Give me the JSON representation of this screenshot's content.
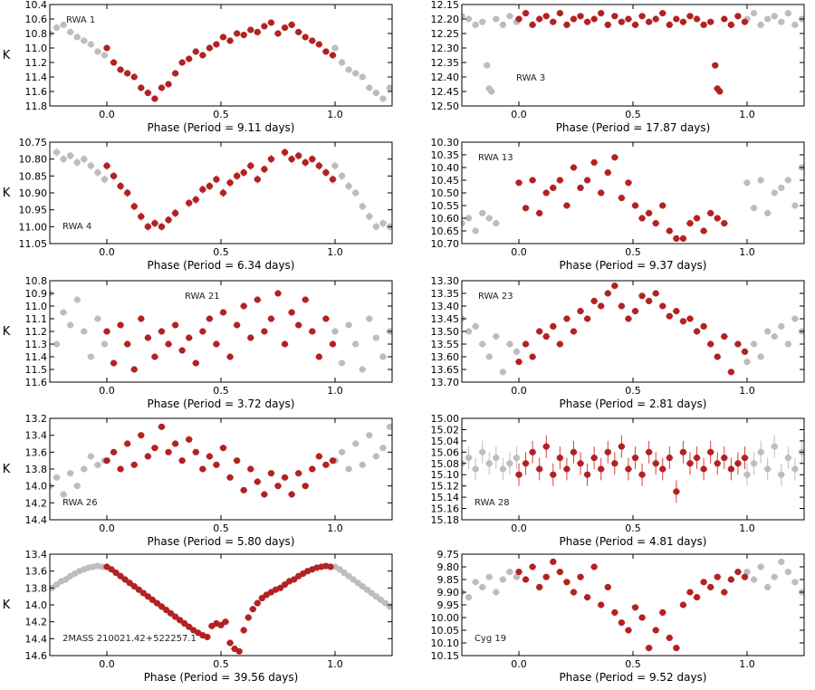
{
  "colors": {
    "main": "#b22222",
    "fold": "#bdbdbd",
    "main_err": "#e03a3a"
  },
  "chart_data": [
    {
      "type": "scatter",
      "name": "RWA 1",
      "period": "9.11",
      "xlabel": "Phase (Period = 9.11 days)",
      "ylabel": "K",
      "xlim": [
        -0.25,
        1.25
      ],
      "xticks": [
        "0.0",
        "0.5",
        "1.0"
      ],
      "ylim": [
        11.8,
        10.4
      ],
      "yticks": [
        "10.4",
        "10.6",
        "10.8",
        "11.0",
        "11.2",
        "11.4",
        "11.6",
        "11.8"
      ],
      "err": 0.02,
      "label_pos": "top-left",
      "y_show_label": true,
      "phase": [
        0.0,
        0.03,
        0.06,
        0.09,
        0.12,
        0.15,
        0.18,
        0.21,
        0.24,
        0.27,
        0.3,
        0.33,
        0.36,
        0.39,
        0.42,
        0.45,
        0.48,
        0.51,
        0.54,
        0.57,
        0.6,
        0.63,
        0.66,
        0.69,
        0.72,
        0.75,
        0.78,
        0.81,
        0.84,
        0.87,
        0.9,
        0.93,
        0.96,
        0.99
      ],
      "mag": [
        11.0,
        11.2,
        11.3,
        11.35,
        11.4,
        11.55,
        11.62,
        11.7,
        11.55,
        11.5,
        11.35,
        11.2,
        11.15,
        11.05,
        11.1,
        11.0,
        10.95,
        10.85,
        10.9,
        10.8,
        10.82,
        10.75,
        10.78,
        10.7,
        10.65,
        10.8,
        10.72,
        10.68,
        10.78,
        10.85,
        10.9,
        10.95,
        11.05,
        11.1
      ]
    },
    {
      "type": "scatter",
      "name": "RWA 3",
      "period": "17.87",
      "xlabel": "Phase (Period = 17.87 days)",
      "ylabel": "",
      "xlim": [
        -0.25,
        1.25
      ],
      "xticks": [
        "0.0",
        "0.5",
        "1.0"
      ],
      "ylim": [
        12.5,
        12.15
      ],
      "yticks": [
        "12.15",
        "12.20",
        "12.25",
        "12.30",
        "12.35",
        "12.40",
        "12.45",
        "12.50"
      ],
      "err": 0.01,
      "label_pos": "center-left",
      "y_show_label": false,
      "phase": [
        0.0,
        0.03,
        0.06,
        0.09,
        0.12,
        0.15,
        0.18,
        0.21,
        0.24,
        0.27,
        0.3,
        0.33,
        0.36,
        0.39,
        0.42,
        0.45,
        0.48,
        0.51,
        0.54,
        0.57,
        0.6,
        0.63,
        0.66,
        0.69,
        0.72,
        0.75,
        0.78,
        0.81,
        0.84,
        0.86,
        0.87,
        0.88,
        0.9,
        0.93,
        0.96,
        0.99
      ],
      "mag": [
        12.2,
        12.18,
        12.22,
        12.2,
        12.19,
        12.21,
        12.18,
        12.22,
        12.2,
        12.19,
        12.21,
        12.2,
        12.18,
        12.22,
        12.19,
        12.21,
        12.2,
        12.22,
        12.19,
        12.21,
        12.2,
        12.18,
        12.22,
        12.2,
        12.21,
        12.19,
        12.2,
        12.22,
        12.21,
        12.36,
        12.44,
        12.45,
        12.2,
        12.22,
        12.19,
        12.21
      ]
    },
    {
      "type": "scatter",
      "name": "RWA 4",
      "period": "6.34",
      "xlabel": "Phase (Period = 6.34 days)",
      "ylabel": "K",
      "xlim": [
        -0.25,
        1.25
      ],
      "xticks": [
        "0.0",
        "0.5",
        "1.0"
      ],
      "ylim": [
        11.05,
        10.75
      ],
      "yticks": [
        "10.75",
        "10.80",
        "10.85",
        "10.90",
        "10.95",
        "11.00",
        "11.05"
      ],
      "err": 0.012,
      "label_pos": "bottom-left",
      "y_show_label": true,
      "phase": [
        0.0,
        0.03,
        0.06,
        0.09,
        0.12,
        0.15,
        0.18,
        0.21,
        0.24,
        0.27,
        0.3,
        0.36,
        0.39,
        0.42,
        0.45,
        0.48,
        0.51,
        0.54,
        0.57,
        0.6,
        0.63,
        0.66,
        0.69,
        0.72,
        0.78,
        0.81,
        0.84,
        0.87,
        0.9,
        0.93,
        0.96,
        0.99
      ],
      "mag": [
        10.82,
        10.85,
        10.88,
        10.9,
        10.94,
        10.97,
        11.0,
        10.99,
        11.0,
        10.98,
        10.96,
        10.93,
        10.92,
        10.89,
        10.88,
        10.86,
        10.9,
        10.87,
        10.85,
        10.84,
        10.82,
        10.86,
        10.83,
        10.8,
        10.78,
        10.8,
        10.79,
        10.81,
        10.8,
        10.82,
        10.84,
        10.86
      ]
    },
    {
      "type": "scatter",
      "name": "RWA 13",
      "period": "9.37",
      "xlabel": "Phase (Period = 9.37 days)",
      "ylabel": "",
      "xlim": [
        -0.25,
        1.25
      ],
      "xticks": [
        "0.0",
        "0.5",
        "1.0"
      ],
      "ylim": [
        10.7,
        10.3
      ],
      "yticks": [
        "10.30",
        "10.35",
        "10.40",
        "10.45",
        "10.50",
        "10.55",
        "10.60",
        "10.65",
        "10.70"
      ],
      "err": 0.012,
      "label_pos": "top-left",
      "y_show_label": false,
      "phase": [
        0.0,
        0.03,
        0.06,
        0.09,
        0.12,
        0.15,
        0.18,
        0.21,
        0.24,
        0.27,
        0.3,
        0.33,
        0.36,
        0.39,
        0.42,
        0.45,
        0.48,
        0.51,
        0.54,
        0.57,
        0.6,
        0.63,
        0.66,
        0.69,
        0.72,
        0.75,
        0.78,
        0.81,
        0.84,
        0.87,
        0.9
      ],
      "mag": [
        10.46,
        10.56,
        10.45,
        10.58,
        10.5,
        10.48,
        10.45,
        10.55,
        10.4,
        10.48,
        10.45,
        10.38,
        10.5,
        10.42,
        10.36,
        10.52,
        10.46,
        10.55,
        10.6,
        10.58,
        10.62,
        10.55,
        10.65,
        10.68,
        10.68,
        10.62,
        10.6,
        10.65,
        10.58,
        10.6,
        10.62
      ]
    },
    {
      "type": "scatter",
      "name": "RWA 21",
      "period": "3.72",
      "xlabel": "Phase (Period = 3.72 days)",
      "ylabel": "K",
      "xlim": [
        -0.25,
        1.25
      ],
      "xticks": [
        "0.0",
        "0.5",
        "1.0"
      ],
      "ylim": [
        11.6,
        10.8
      ],
      "yticks": [
        "10.8",
        "10.9",
        "11.0",
        "11.1",
        "11.2",
        "11.3",
        "11.4",
        "11.5",
        "11.6"
      ],
      "err": 0.015,
      "label_pos": "top-center",
      "y_show_label": true,
      "phase": [
        0.0,
        0.03,
        0.06,
        0.09,
        0.12,
        0.15,
        0.18,
        0.21,
        0.24,
        0.27,
        0.3,
        0.33,
        0.36,
        0.39,
        0.42,
        0.45,
        0.48,
        0.51,
        0.54,
        0.57,
        0.6,
        0.63,
        0.66,
        0.69,
        0.72,
        0.75,
        0.78,
        0.81,
        0.84,
        0.87,
        0.9,
        0.93,
        0.96,
        0.99
      ],
      "mag": [
        11.2,
        11.45,
        11.15,
        11.3,
        11.5,
        11.1,
        11.25,
        11.4,
        11.2,
        11.3,
        11.15,
        11.35,
        11.25,
        11.45,
        11.2,
        11.1,
        11.3,
        11.05,
        11.4,
        11.15,
        11.0,
        11.25,
        10.95,
        11.2,
        11.1,
        10.9,
        11.3,
        11.05,
        11.15,
        10.95,
        11.2,
        11.4,
        11.1,
        11.3
      ]
    },
    {
      "type": "scatter",
      "name": "RWA 23",
      "period": "2.81",
      "xlabel": "Phase (Period = 2.81 days)",
      "ylabel": "",
      "xlim": [
        -0.25,
        1.25
      ],
      "xticks": [
        "0.0",
        "0.5",
        "1.0"
      ],
      "ylim": [
        13.7,
        13.3
      ],
      "yticks": [
        "13.30",
        "13.35",
        "13.40",
        "13.45",
        "13.50",
        "13.55",
        "13.60",
        "13.65",
        "13.70"
      ],
      "err": 0.012,
      "label_pos": "top-left",
      "y_show_label": false,
      "phase": [
        0.0,
        0.03,
        0.06,
        0.09,
        0.12,
        0.15,
        0.18,
        0.21,
        0.24,
        0.27,
        0.3,
        0.33,
        0.36,
        0.39,
        0.42,
        0.45,
        0.48,
        0.51,
        0.54,
        0.57,
        0.6,
        0.63,
        0.66,
        0.69,
        0.72,
        0.75,
        0.78,
        0.81,
        0.84,
        0.87,
        0.9,
        0.93,
        0.96,
        0.99
      ],
      "mag": [
        13.62,
        13.55,
        13.6,
        13.5,
        13.52,
        13.48,
        13.55,
        13.45,
        13.5,
        13.42,
        13.45,
        13.38,
        13.4,
        13.35,
        13.32,
        13.4,
        13.45,
        13.42,
        13.36,
        13.38,
        13.35,
        13.4,
        13.44,
        13.42,
        13.46,
        13.45,
        13.5,
        13.48,
        13.55,
        13.6,
        13.52,
        13.66,
        13.55,
        13.58
      ]
    },
    {
      "type": "scatter",
      "name": "RWA 26",
      "period": "5.80",
      "xlabel": "Phase (Period = 5.80 days)",
      "ylabel": "K",
      "xlim": [
        -0.25,
        1.25
      ],
      "xticks": [
        "0.0",
        "0.5",
        "1.0"
      ],
      "ylim": [
        14.4,
        13.2
      ],
      "yticks": [
        "13.2",
        "13.4",
        "13.6",
        "13.8",
        "14.0",
        "14.2",
        "14.4"
      ],
      "err": 0.02,
      "label_pos": "bottom-left",
      "y_show_label": true,
      "phase": [
        0.0,
        0.03,
        0.06,
        0.09,
        0.12,
        0.15,
        0.18,
        0.21,
        0.24,
        0.27,
        0.3,
        0.33,
        0.36,
        0.39,
        0.42,
        0.45,
        0.48,
        0.51,
        0.54,
        0.57,
        0.6,
        0.63,
        0.66,
        0.69,
        0.72,
        0.75,
        0.78,
        0.81,
        0.84,
        0.87,
        0.9,
        0.93,
        0.96,
        0.99
      ],
      "mag": [
        13.7,
        13.6,
        13.8,
        13.5,
        13.75,
        13.4,
        13.65,
        13.55,
        13.3,
        13.6,
        13.5,
        13.7,
        13.45,
        13.6,
        13.8,
        13.65,
        13.75,
        13.55,
        13.9,
        13.7,
        14.05,
        13.8,
        13.95,
        14.1,
        13.85,
        14.0,
        13.9,
        14.1,
        13.85,
        14.0,
        13.8,
        13.65,
        13.75,
        13.7
      ]
    },
    {
      "type": "scatter",
      "name": "RWA 28",
      "period": "4.81",
      "xlabel": "Phase (Period = 4.81 days)",
      "ylabel": "",
      "xlim": [
        -0.25,
        1.25
      ],
      "xticks": [
        "0.0",
        "0.5",
        "1.0"
      ],
      "ylim": [
        15.18,
        15.0
      ],
      "yticks": [
        "15.00",
        "15.02",
        "15.04",
        "15.06",
        "15.08",
        "15.10",
        "15.12",
        "15.14",
        "15.16",
        "15.18"
      ],
      "err": 0.02,
      "label_pos": "bottom-left",
      "y_show_label": false,
      "phase": [
        0.0,
        0.03,
        0.06,
        0.09,
        0.12,
        0.15,
        0.18,
        0.21,
        0.24,
        0.27,
        0.3,
        0.33,
        0.36,
        0.39,
        0.42,
        0.45,
        0.48,
        0.51,
        0.54,
        0.57,
        0.6,
        0.63,
        0.66,
        0.69,
        0.72,
        0.75,
        0.78,
        0.81,
        0.84,
        0.87,
        0.9,
        0.93,
        0.96,
        0.99
      ],
      "mag": [
        15.1,
        15.08,
        15.06,
        15.09,
        15.05,
        15.1,
        15.07,
        15.09,
        15.06,
        15.08,
        15.1,
        15.07,
        15.09,
        15.06,
        15.08,
        15.05,
        15.09,
        15.07,
        15.1,
        15.06,
        15.08,
        15.09,
        15.07,
        15.13,
        15.06,
        15.08,
        15.07,
        15.09,
        15.06,
        15.08,
        15.07,
        15.09,
        15.08,
        15.07
      ]
    },
    {
      "type": "scatter",
      "name": "2MASS 210021.42+522257.1",
      "period": "39.56",
      "xlabel": "Phase (Period = 39.56 days)",
      "ylabel": "K",
      "xlim": [
        -0.25,
        1.25
      ],
      "xticks": [
        "0.0",
        "0.5",
        "1.0"
      ],
      "ylim": [
        14.6,
        13.4
      ],
      "yticks": [
        "13.4",
        "13.6",
        "13.8",
        "14.0",
        "14.2",
        "14.4",
        "14.6"
      ],
      "err": 0.01,
      "label_pos": "bottom-left",
      "y_show_label": true,
      "phase": [
        0.0,
        0.02,
        0.04,
        0.06,
        0.08,
        0.1,
        0.12,
        0.14,
        0.16,
        0.18,
        0.2,
        0.22,
        0.24,
        0.26,
        0.28,
        0.3,
        0.32,
        0.34,
        0.36,
        0.38,
        0.4,
        0.42,
        0.44,
        0.46,
        0.48,
        0.5,
        0.52,
        0.54,
        0.56,
        0.58,
        0.6,
        0.62,
        0.64,
        0.66,
        0.68,
        0.7,
        0.72,
        0.74,
        0.76,
        0.78,
        0.8,
        0.82,
        0.84,
        0.86,
        0.88,
        0.9,
        0.92,
        0.94,
        0.96,
        0.98
      ],
      "mag": [
        13.55,
        13.58,
        13.62,
        13.66,
        13.7,
        13.74,
        13.78,
        13.82,
        13.86,
        13.9,
        13.94,
        13.98,
        14.02,
        14.06,
        14.1,
        14.14,
        14.18,
        14.22,
        14.26,
        14.3,
        14.33,
        14.36,
        14.38,
        14.25,
        14.22,
        14.24,
        14.2,
        14.45,
        14.52,
        14.55,
        14.3,
        14.15,
        14.05,
        13.98,
        13.92,
        13.88,
        13.85,
        13.82,
        13.8,
        13.76,
        13.72,
        13.7,
        13.66,
        13.63,
        13.6,
        13.58,
        13.56,
        13.55,
        13.54,
        13.55
      ]
    },
    {
      "type": "scatter",
      "name": "Cyg 19",
      "period": "9.52",
      "xlabel": "Phase (Period = 9.52 days)",
      "ylabel": "",
      "xlim": [
        -0.25,
        1.25
      ],
      "xticks": [
        "0.0",
        "0.5",
        "1.0"
      ],
      "ylim": [
        10.15,
        9.75
      ],
      "yticks": [
        "9.75",
        "9.80",
        "9.85",
        "9.90",
        "9.95",
        "10.00",
        "10.05",
        "10.10",
        "10.15"
      ],
      "err": 0.012,
      "label_pos": "bottom-left",
      "y_show_label": false,
      "phase": [
        0.0,
        0.03,
        0.06,
        0.09,
        0.12,
        0.15,
        0.18,
        0.21,
        0.24,
        0.27,
        0.3,
        0.33,
        0.36,
        0.39,
        0.42,
        0.45,
        0.48,
        0.51,
        0.54,
        0.57,
        0.6,
        0.63,
        0.66,
        0.69,
        0.72,
        0.75,
        0.78,
        0.81,
        0.84,
        0.87,
        0.9,
        0.93,
        0.96,
        0.99
      ],
      "mag": [
        9.82,
        9.85,
        9.8,
        9.88,
        9.84,
        9.78,
        9.82,
        9.86,
        9.9,
        9.84,
        9.92,
        9.8,
        9.95,
        9.88,
        9.98,
        10.02,
        10.05,
        9.96,
        10.0,
        10.12,
        10.05,
        9.98,
        10.08,
        10.12,
        9.95,
        9.9,
        9.92,
        9.86,
        9.88,
        9.84,
        9.9,
        9.85,
        9.82,
        9.84
      ]
    }
  ]
}
